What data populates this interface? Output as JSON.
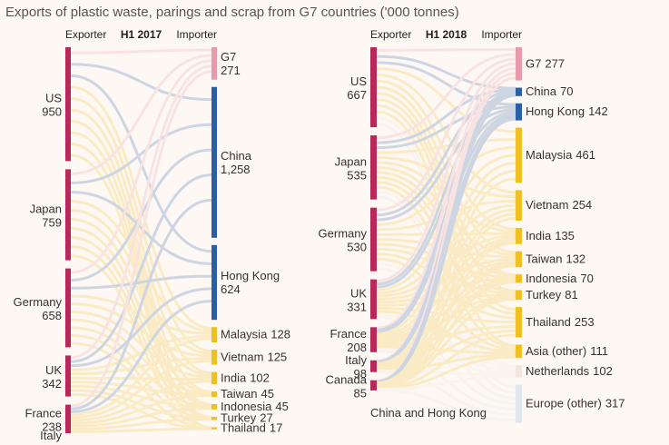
{
  "title": "Exports of plastic waste, parings and scrap from G7 countries ('000 tonnes)",
  "chart_data": [
    {
      "type": "sankey",
      "title": "H1 2017",
      "exporter_label": "Exporter",
      "importer_label": "Importer",
      "exporter_color": "#b8285a",
      "exporters": {
        "names": [
          "US",
          "Japan",
          "Germany",
          "UK",
          "France",
          "Italy"
        ],
        "values": [
          950,
          759,
          658,
          342,
          238,
          null
        ]
      },
      "importers": {
        "names": [
          "G7",
          "China",
          "Hong Kong",
          "Malaysia",
          "Vietnam",
          "India",
          "Taiwan",
          "Indonesia",
          "Turkey",
          "Thailand"
        ],
        "values": [
          271,
          1258,
          624,
          128,
          125,
          102,
          45,
          45,
          27,
          17
        ],
        "value_labels": [
          null,
          "1,258",
          null,
          null,
          null,
          null,
          null,
          null,
          null,
          null
        ],
        "colors": [
          "#e89aab",
          "#2a5fa8",
          "#2a5fa8",
          "#f0c020",
          "#f0c020",
          "#f0c020",
          "#f0c020",
          "#f0c020",
          "#f0c020",
          "#f0c020"
        ]
      }
    },
    {
      "type": "sankey",
      "title": "H1 2018",
      "exporter_label": "Exporter",
      "importer_label": "Importer",
      "exporter_color": "#b8285a",
      "exporters": {
        "names": [
          "US",
          "Japan",
          "Germany",
          "UK",
          "France",
          "Italy",
          "Canada"
        ],
        "values": [
          667,
          535,
          530,
          331,
          208,
          98,
          85
        ]
      },
      "importers": {
        "names": [
          "G7",
          "China",
          "Hong Kong",
          "Malaysia",
          "Vietnam",
          "India",
          "Taiwan",
          "Indonesia",
          "Turkey",
          "Thailand",
          "Asia (other)",
          "Netherlands",
          "Europe (other)"
        ],
        "values": [
          277,
          70,
          142,
          461,
          254,
          135,
          132,
          70,
          81,
          253,
          111,
          102,
          317
        ],
        "colors": [
          "#e89aab",
          "#2a5fa8",
          "#2a5fa8",
          "#f0c020",
          "#f0c020",
          "#f0c020",
          "#f0c020",
          "#f0c020",
          "#f0c020",
          "#f0c020",
          "#f0c020",
          "#f4e6df",
          "#dfe6ee"
        ]
      },
      "note": "China and Hong Kong"
    }
  ]
}
